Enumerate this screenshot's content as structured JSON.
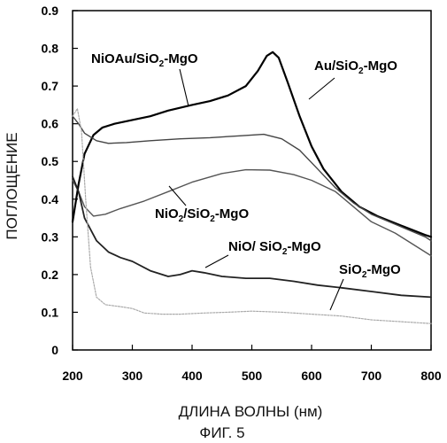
{
  "chart_data": {
    "type": "line",
    "xlabel": "ДЛИНА ВОЛНЫ (нм)",
    "ylabel": "ПОГЛОЩЕНИЕ",
    "figure_caption": "ФИГ. 5",
    "xlim": [
      200,
      800
    ],
    "ylim": [
      0,
      0.9
    ],
    "x_ticks": [
      "200",
      "300",
      "400",
      "500",
      "600",
      "700",
      "800"
    ],
    "y_ticks": [
      "0",
      "0.1",
      "0.2",
      "0.3",
      "0.4",
      "0.5",
      "0.6",
      "0.7",
      "0.8",
      "0.9"
    ],
    "grid": false,
    "series": [
      {
        "name": "Au/SiO2-MgO",
        "color": "#000000",
        "points": [
          [
            200,
            0.34
          ],
          [
            210,
            0.44
          ],
          [
            220,
            0.52
          ],
          [
            235,
            0.57
          ],
          [
            250,
            0.59
          ],
          [
            270,
            0.6
          ],
          [
            300,
            0.61
          ],
          [
            330,
            0.62
          ],
          [
            360,
            0.635
          ],
          [
            400,
            0.65
          ],
          [
            430,
            0.66
          ],
          [
            460,
            0.675
          ],
          [
            490,
            0.7
          ],
          [
            510,
            0.74
          ],
          [
            525,
            0.78
          ],
          [
            535,
            0.79
          ],
          [
            545,
            0.775
          ],
          [
            560,
            0.71
          ],
          [
            580,
            0.62
          ],
          [
            600,
            0.54
          ],
          [
            620,
            0.48
          ],
          [
            650,
            0.42
          ],
          [
            680,
            0.38
          ],
          [
            710,
            0.355
          ],
          [
            750,
            0.33
          ],
          [
            790,
            0.305
          ],
          [
            800,
            0.3
          ]
        ]
      },
      {
        "name": "NiOAu/SiO2-MgO",
        "color": "#444444",
        "points": [
          [
            200,
            0.62
          ],
          [
            210,
            0.6
          ],
          [
            220,
            0.575
          ],
          [
            240,
            0.555
          ],
          [
            260,
            0.548
          ],
          [
            290,
            0.55
          ],
          [
            330,
            0.555
          ],
          [
            380,
            0.56
          ],
          [
            430,
            0.563
          ],
          [
            480,
            0.568
          ],
          [
            520,
            0.572
          ],
          [
            550,
            0.56
          ],
          [
            580,
            0.53
          ],
          [
            610,
            0.48
          ],
          [
            640,
            0.43
          ],
          [
            670,
            0.39
          ],
          [
            700,
            0.36
          ],
          [
            730,
            0.34
          ],
          [
            760,
            0.32
          ],
          [
            790,
            0.3
          ],
          [
            800,
            0.29
          ]
        ]
      },
      {
        "name": "NiO2/SiO2-MgO",
        "color": "#555555",
        "points": [
          [
            200,
            0.45
          ],
          [
            210,
            0.42
          ],
          [
            220,
            0.38
          ],
          [
            235,
            0.355
          ],
          [
            255,
            0.36
          ],
          [
            280,
            0.375
          ],
          [
            320,
            0.395
          ],
          [
            360,
            0.42
          ],
          [
            400,
            0.445
          ],
          [
            450,
            0.468
          ],
          [
            490,
            0.478
          ],
          [
            530,
            0.477
          ],
          [
            570,
            0.465
          ],
          [
            600,
            0.45
          ],
          [
            640,
            0.42
          ],
          [
            670,
            0.38
          ],
          [
            700,
            0.34
          ],
          [
            740,
            0.31
          ],
          [
            780,
            0.27
          ],
          [
            800,
            0.25
          ]
        ]
      },
      {
        "name": "NiO/ SiO2-MgO",
        "color": "#222222",
        "points": [
          [
            200,
            0.46
          ],
          [
            210,
            0.42
          ],
          [
            220,
            0.35
          ],
          [
            240,
            0.29
          ],
          [
            260,
            0.26
          ],
          [
            280,
            0.245
          ],
          [
            300,
            0.235
          ],
          [
            330,
            0.21
          ],
          [
            360,
            0.195
          ],
          [
            380,
            0.2
          ],
          [
            400,
            0.21
          ],
          [
            420,
            0.205
          ],
          [
            450,
            0.195
          ],
          [
            490,
            0.19
          ],
          [
            530,
            0.19
          ],
          [
            570,
            0.182
          ],
          [
            610,
            0.172
          ],
          [
            650,
            0.165
          ],
          [
            700,
            0.155
          ],
          [
            750,
            0.145
          ],
          [
            800,
            0.14
          ]
        ]
      },
      {
        "name": "SiO2-MgO",
        "color": "#aaaaaa",
        "points": [
          [
            200,
            0.62
          ],
          [
            208,
            0.64
          ],
          [
            215,
            0.58
          ],
          [
            222,
            0.4
          ],
          [
            230,
            0.22
          ],
          [
            240,
            0.14
          ],
          [
            255,
            0.12
          ],
          [
            280,
            0.115
          ],
          [
            300,
            0.11
          ],
          [
            320,
            0.098
          ],
          [
            350,
            0.095
          ],
          [
            380,
            0.095
          ],
          [
            420,
            0.098
          ],
          [
            460,
            0.1
          ],
          [
            500,
            0.103
          ],
          [
            550,
            0.1
          ],
          [
            600,
            0.095
          ],
          [
            650,
            0.09
          ],
          [
            700,
            0.08
          ],
          [
            750,
            0.075
          ],
          [
            800,
            0.07
          ]
        ]
      }
    ],
    "annotations": [
      {
        "main": "NiOAu/SiO",
        "sub": "2",
        "rest": "-MgO"
      },
      {
        "main": "Au/SiO",
        "sub": "2",
        "rest": "-MgO"
      },
      {
        "main": "NiO",
        "sub": "2",
        "rest": "/SiO",
        "sub2": "2",
        "rest2": "-MgO"
      },
      {
        "main": "NiO/ SiO",
        "sub": "2",
        "rest": "-MgO"
      },
      {
        "main": "SiO",
        "sub": "2",
        "rest": "-MgO"
      }
    ]
  }
}
